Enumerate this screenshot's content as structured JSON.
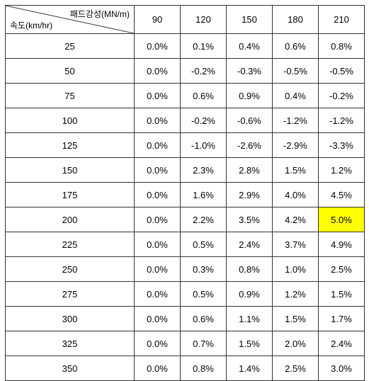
{
  "table": {
    "diagonal_top": "패드강성(MN/m)",
    "diagonal_bottom": "속도(km/hr)",
    "columns": [
      "90",
      "120",
      "150",
      "180",
      "210"
    ],
    "rows": [
      {
        "label": "25",
        "values": [
          "0.0%",
          "0.1%",
          "0.4%",
          "0.6%",
          "0.8%"
        ]
      },
      {
        "label": "50",
        "values": [
          "0.0%",
          "-0.2%",
          "-0.3%",
          "-0.5%",
          "-0.5%"
        ]
      },
      {
        "label": "75",
        "values": [
          "0.0%",
          "0.6%",
          "0.9%",
          "0.4%",
          "-0.2%"
        ]
      },
      {
        "label": "100",
        "values": [
          "0.0%",
          "-0.2%",
          "-0.6%",
          "-1.2%",
          "-1.2%"
        ]
      },
      {
        "label": "125",
        "values": [
          "0.0%",
          "-1.0%",
          "-2.6%",
          "-2.9%",
          "-3.3%"
        ]
      },
      {
        "label": "150",
        "values": [
          "0.0%",
          "2.3%",
          "2.8%",
          "1.5%",
          "1.2%"
        ]
      },
      {
        "label": "175",
        "values": [
          "0.0%",
          "1.6%",
          "2.9%",
          "4.0%",
          "4.5%"
        ]
      },
      {
        "label": "200",
        "values": [
          "0.0%",
          "2.2%",
          "3.5%",
          "4.2%",
          "5.0%"
        ],
        "highlight": [
          4
        ]
      },
      {
        "label": "225",
        "values": [
          "0.0%",
          "0.5%",
          "2.4%",
          "3.7%",
          "4.9%"
        ]
      },
      {
        "label": "250",
        "values": [
          "0.0%",
          "0.3%",
          "0.8%",
          "1.0%",
          "2.5%"
        ]
      },
      {
        "label": "275",
        "values": [
          "0.0%",
          "0.5%",
          "0.9%",
          "1.2%",
          "1.5%"
        ]
      },
      {
        "label": "300",
        "values": [
          "0.0%",
          "0.6%",
          "1.1%",
          "1.5%",
          "1.7%"
        ]
      },
      {
        "label": "325",
        "values": [
          "0.0%",
          "0.7%",
          "1.5%",
          "2.0%",
          "2.4%"
        ]
      },
      {
        "label": "350",
        "values": [
          "0.0%",
          "0.8%",
          "1.4%",
          "2.5%",
          "3.0%"
        ]
      }
    ],
    "highlight_color": "#ffff00",
    "border_color": "#333333",
    "background_color": "#ffffff",
    "font_size_header": 12,
    "font_size_cell": 13
  }
}
